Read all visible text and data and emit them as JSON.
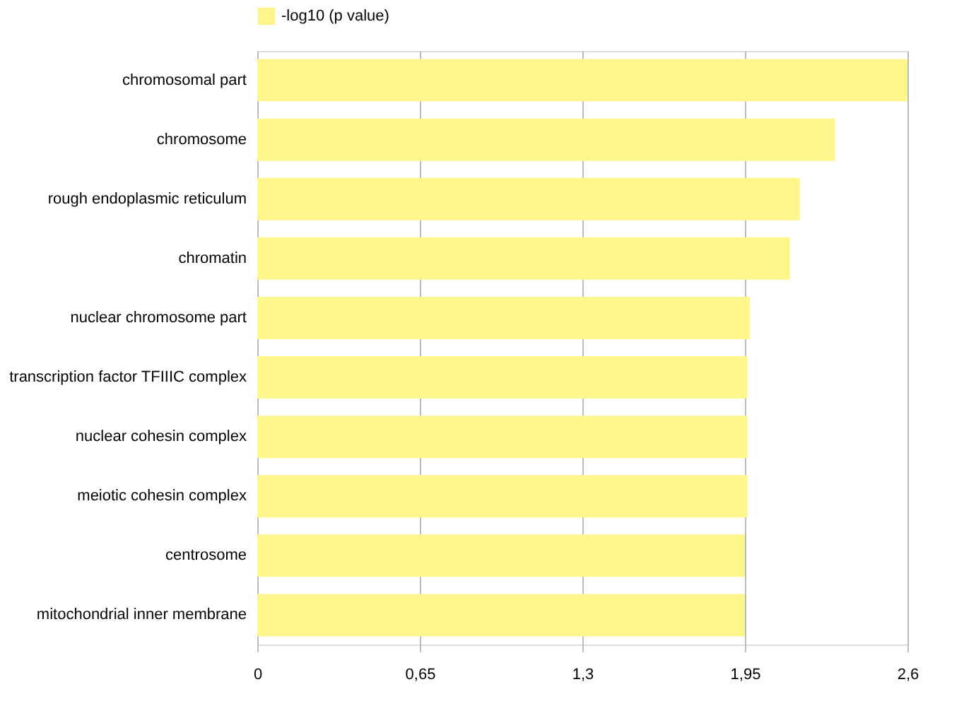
{
  "chart_data": {
    "type": "bar",
    "orientation": "horizontal",
    "categories": [
      "chromosomal part",
      "chromosome",
      "rough endoplasmic reticulum",
      "chromatin",
      "nuclear chromosome part",
      "transcription factor TFIIIC complex",
      "nuclear cohesin complex",
      "meiotic cohesin complex",
      "centrosome",
      "mitochondrial inner membrane"
    ],
    "series": [
      {
        "name": "-log10 (p value)",
        "color": "#fdf68c",
        "values": [
          2.6,
          2.31,
          2.17,
          2.13,
          1.97,
          1.96,
          1.96,
          1.96,
          1.95,
          1.95
        ]
      }
    ],
    "xlim": [
      0,
      2.6
    ],
    "xticks": [
      0,
      {
        "value": 0.65,
        "label": "0,65"
      },
      {
        "value": 1.3,
        "label": "1,3"
      },
      {
        "value": 1.95,
        "label": "1,95"
      },
      {
        "value": 2.6,
        "label": "2,6"
      }
    ],
    "grid": "x",
    "legend": "top"
  }
}
